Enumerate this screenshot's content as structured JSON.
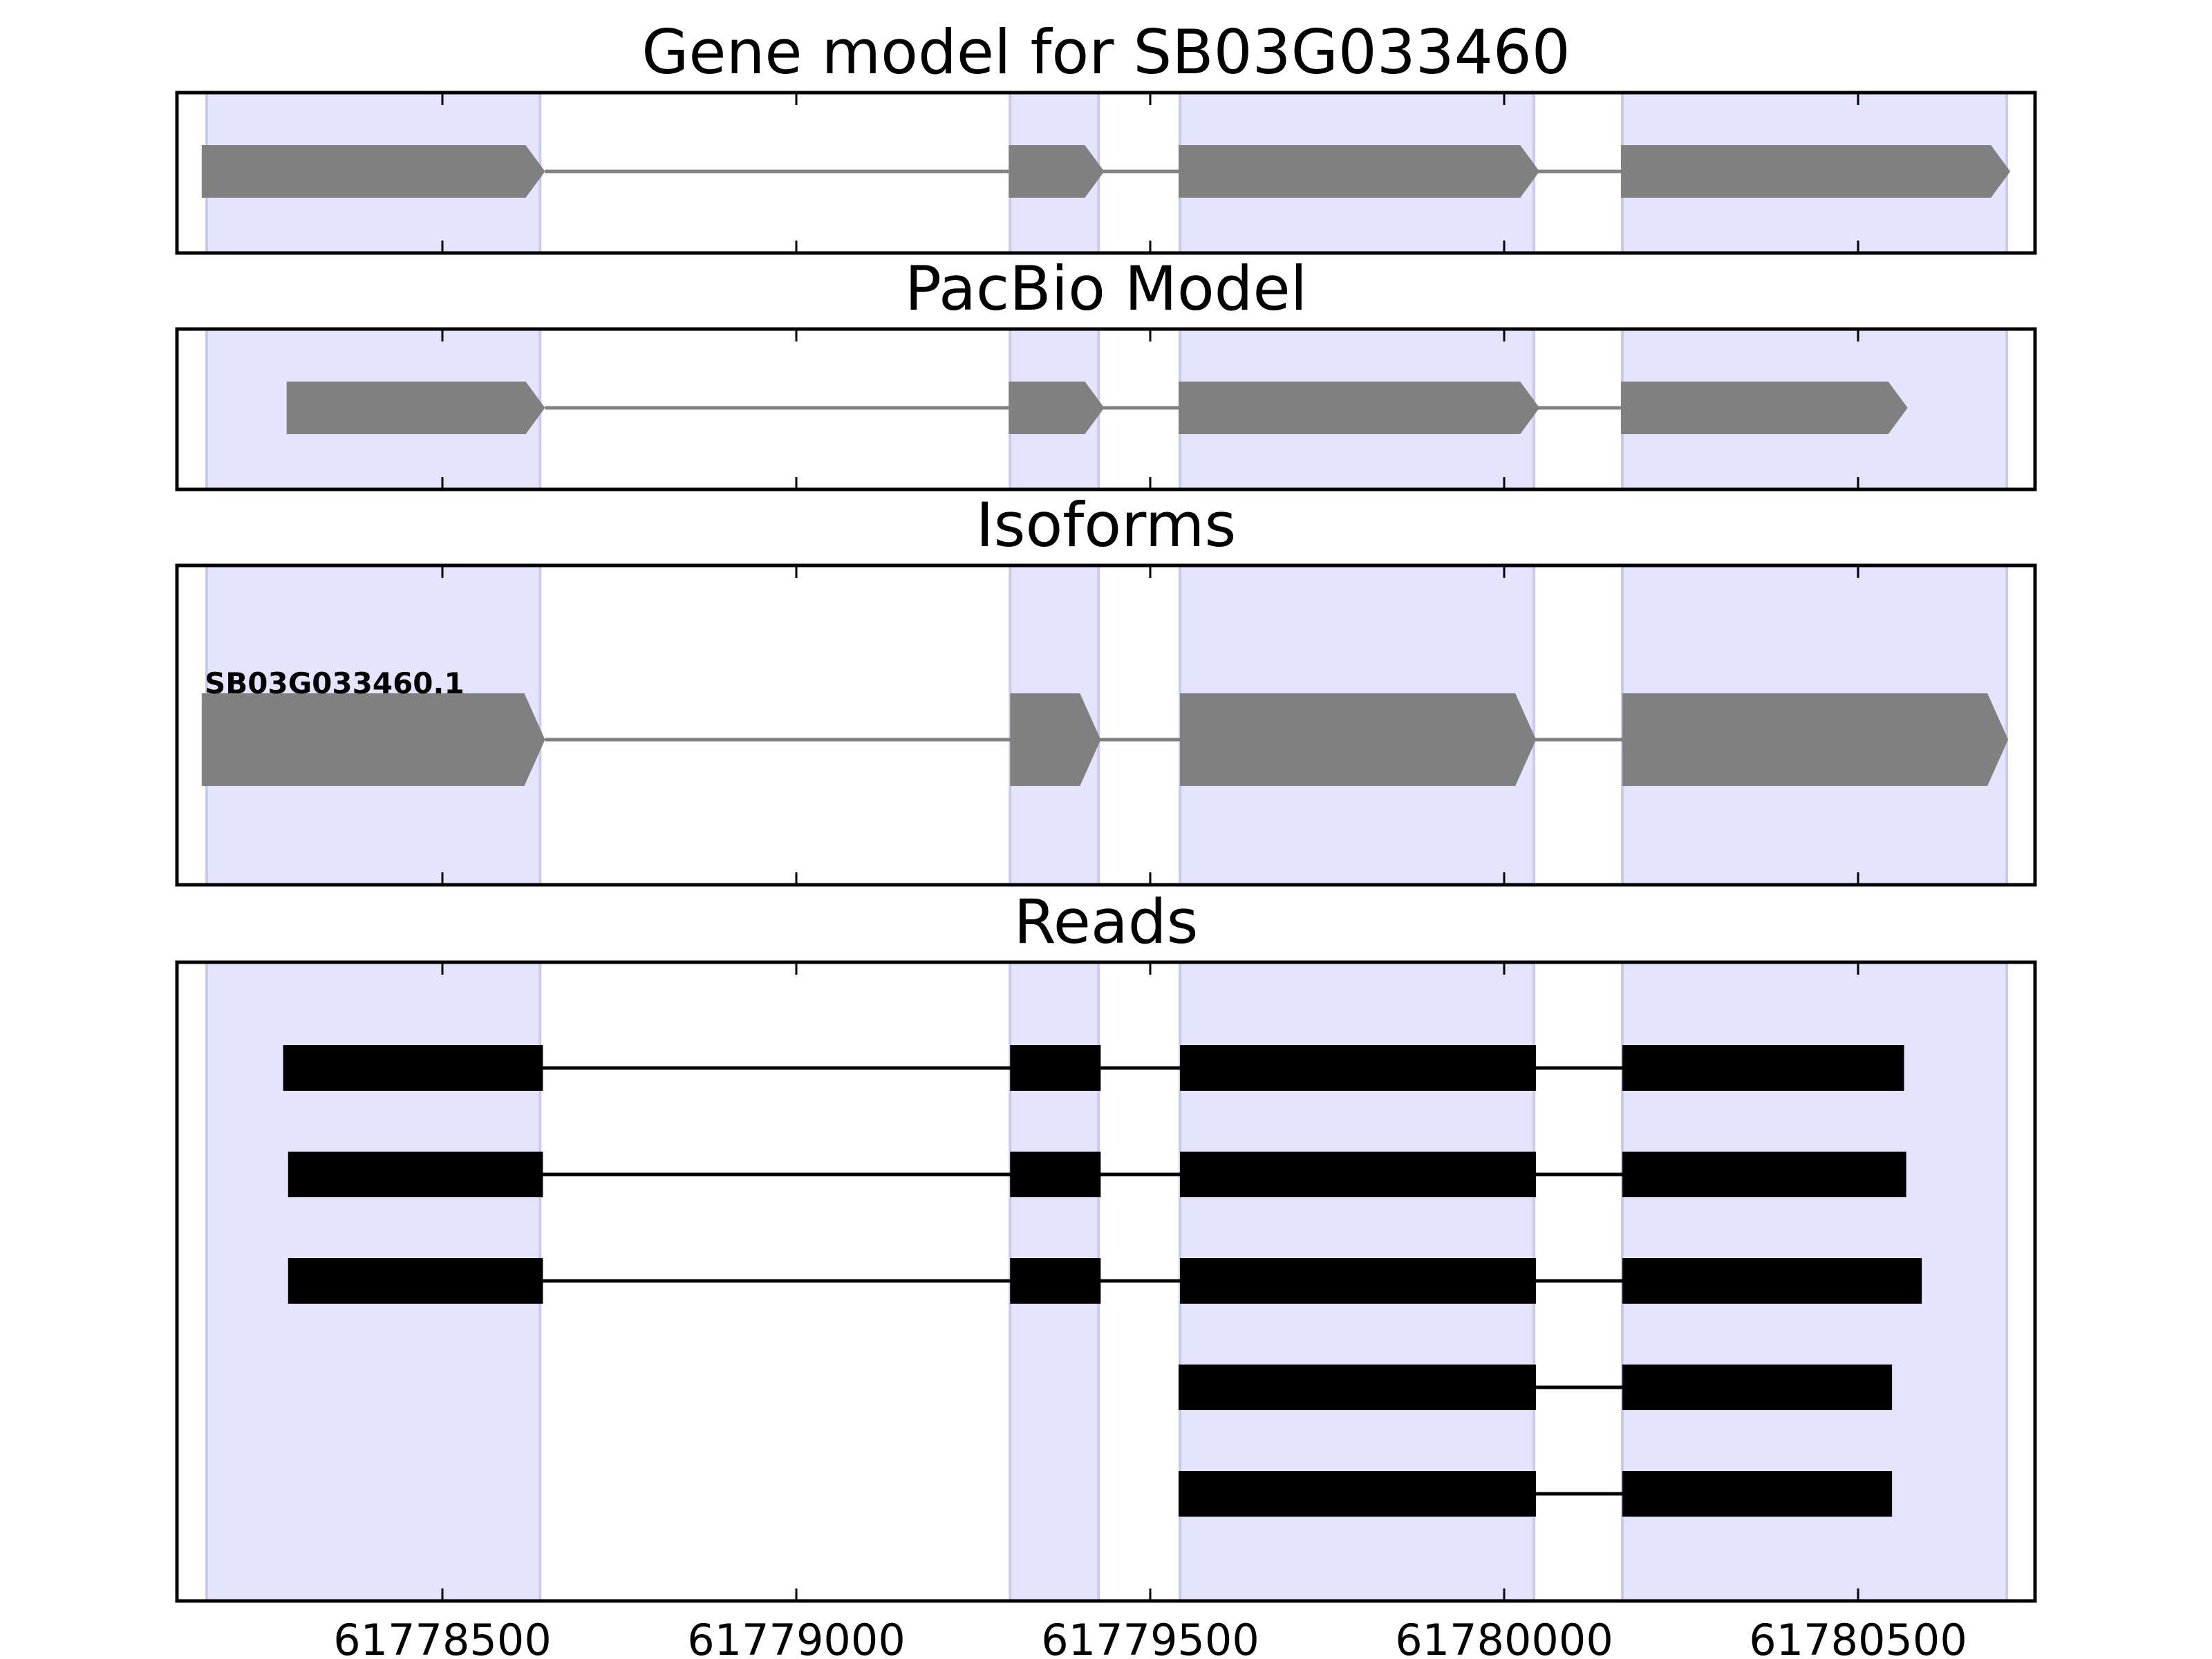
{
  "chart_data": {
    "type": "gene_structure",
    "xlim": [
      61778125,
      61780750
    ],
    "x_ticks": [
      61778500,
      61779000,
      61779500,
      61780000,
      61780500
    ],
    "x_tick_labels": [
      "61778500",
      "61779000",
      "61779500",
      "61780000",
      "61780500"
    ],
    "grid": false,
    "colors": {
      "exon_band": "#e4e4ff",
      "exon_band_edge": "#cacaf0",
      "gene_feature": "#808080",
      "read_feature": "#000000",
      "axes": "#000000"
    },
    "exon_regions": [
      [
        61778167,
        61778638
      ],
      [
        61779302,
        61779427
      ],
      [
        61779542,
        61780042
      ],
      [
        61780167,
        61780710
      ]
    ],
    "panels": [
      {
        "id": "gene-model",
        "title": "Gene model for SB03G033460",
        "strand": "+",
        "exons": [
          [
            61778160,
            61778645
          ],
          [
            61779300,
            61779435
          ],
          [
            61779540,
            61780050
          ],
          [
            61780165,
            61780715
          ]
        ]
      },
      {
        "id": "pacbio-model",
        "title": "PacBio Model",
        "strand": "+",
        "exons": [
          [
            61778280,
            61778645
          ],
          [
            61779300,
            61779435
          ],
          [
            61779540,
            61780050
          ],
          [
            61780165,
            61780570
          ]
        ]
      },
      {
        "id": "isoforms",
        "title": "Isoforms",
        "strand": "+",
        "isoform_label": "SB03G033460.1",
        "exons": [
          [
            61778160,
            61778645
          ],
          [
            61779302,
            61779430
          ],
          [
            61779542,
            61780045
          ],
          [
            61780167,
            61780712
          ]
        ]
      },
      {
        "id": "reads",
        "title": "Reads",
        "reads": [
          [
            [
              61778275,
              61778642
            ],
            [
              61779302,
              61779430
            ],
            [
              61779542,
              61780045
            ],
            [
              61780167,
              61780565
            ]
          ],
          [
            [
              61778282,
              61778642
            ],
            [
              61779302,
              61779430
            ],
            [
              61779542,
              61780045
            ],
            [
              61780167,
              61780568
            ]
          ],
          [
            [
              61778282,
              61778642
            ],
            [
              61779302,
              61779430
            ],
            [
              61779542,
              61780045
            ],
            [
              61780167,
              61780590
            ]
          ],
          [
            [
              61779540,
              61780045
            ],
            [
              61780167,
              61780548
            ]
          ],
          [
            [
              61779540,
              61780045
            ],
            [
              61780167,
              61780548
            ]
          ]
        ]
      }
    ]
  }
}
